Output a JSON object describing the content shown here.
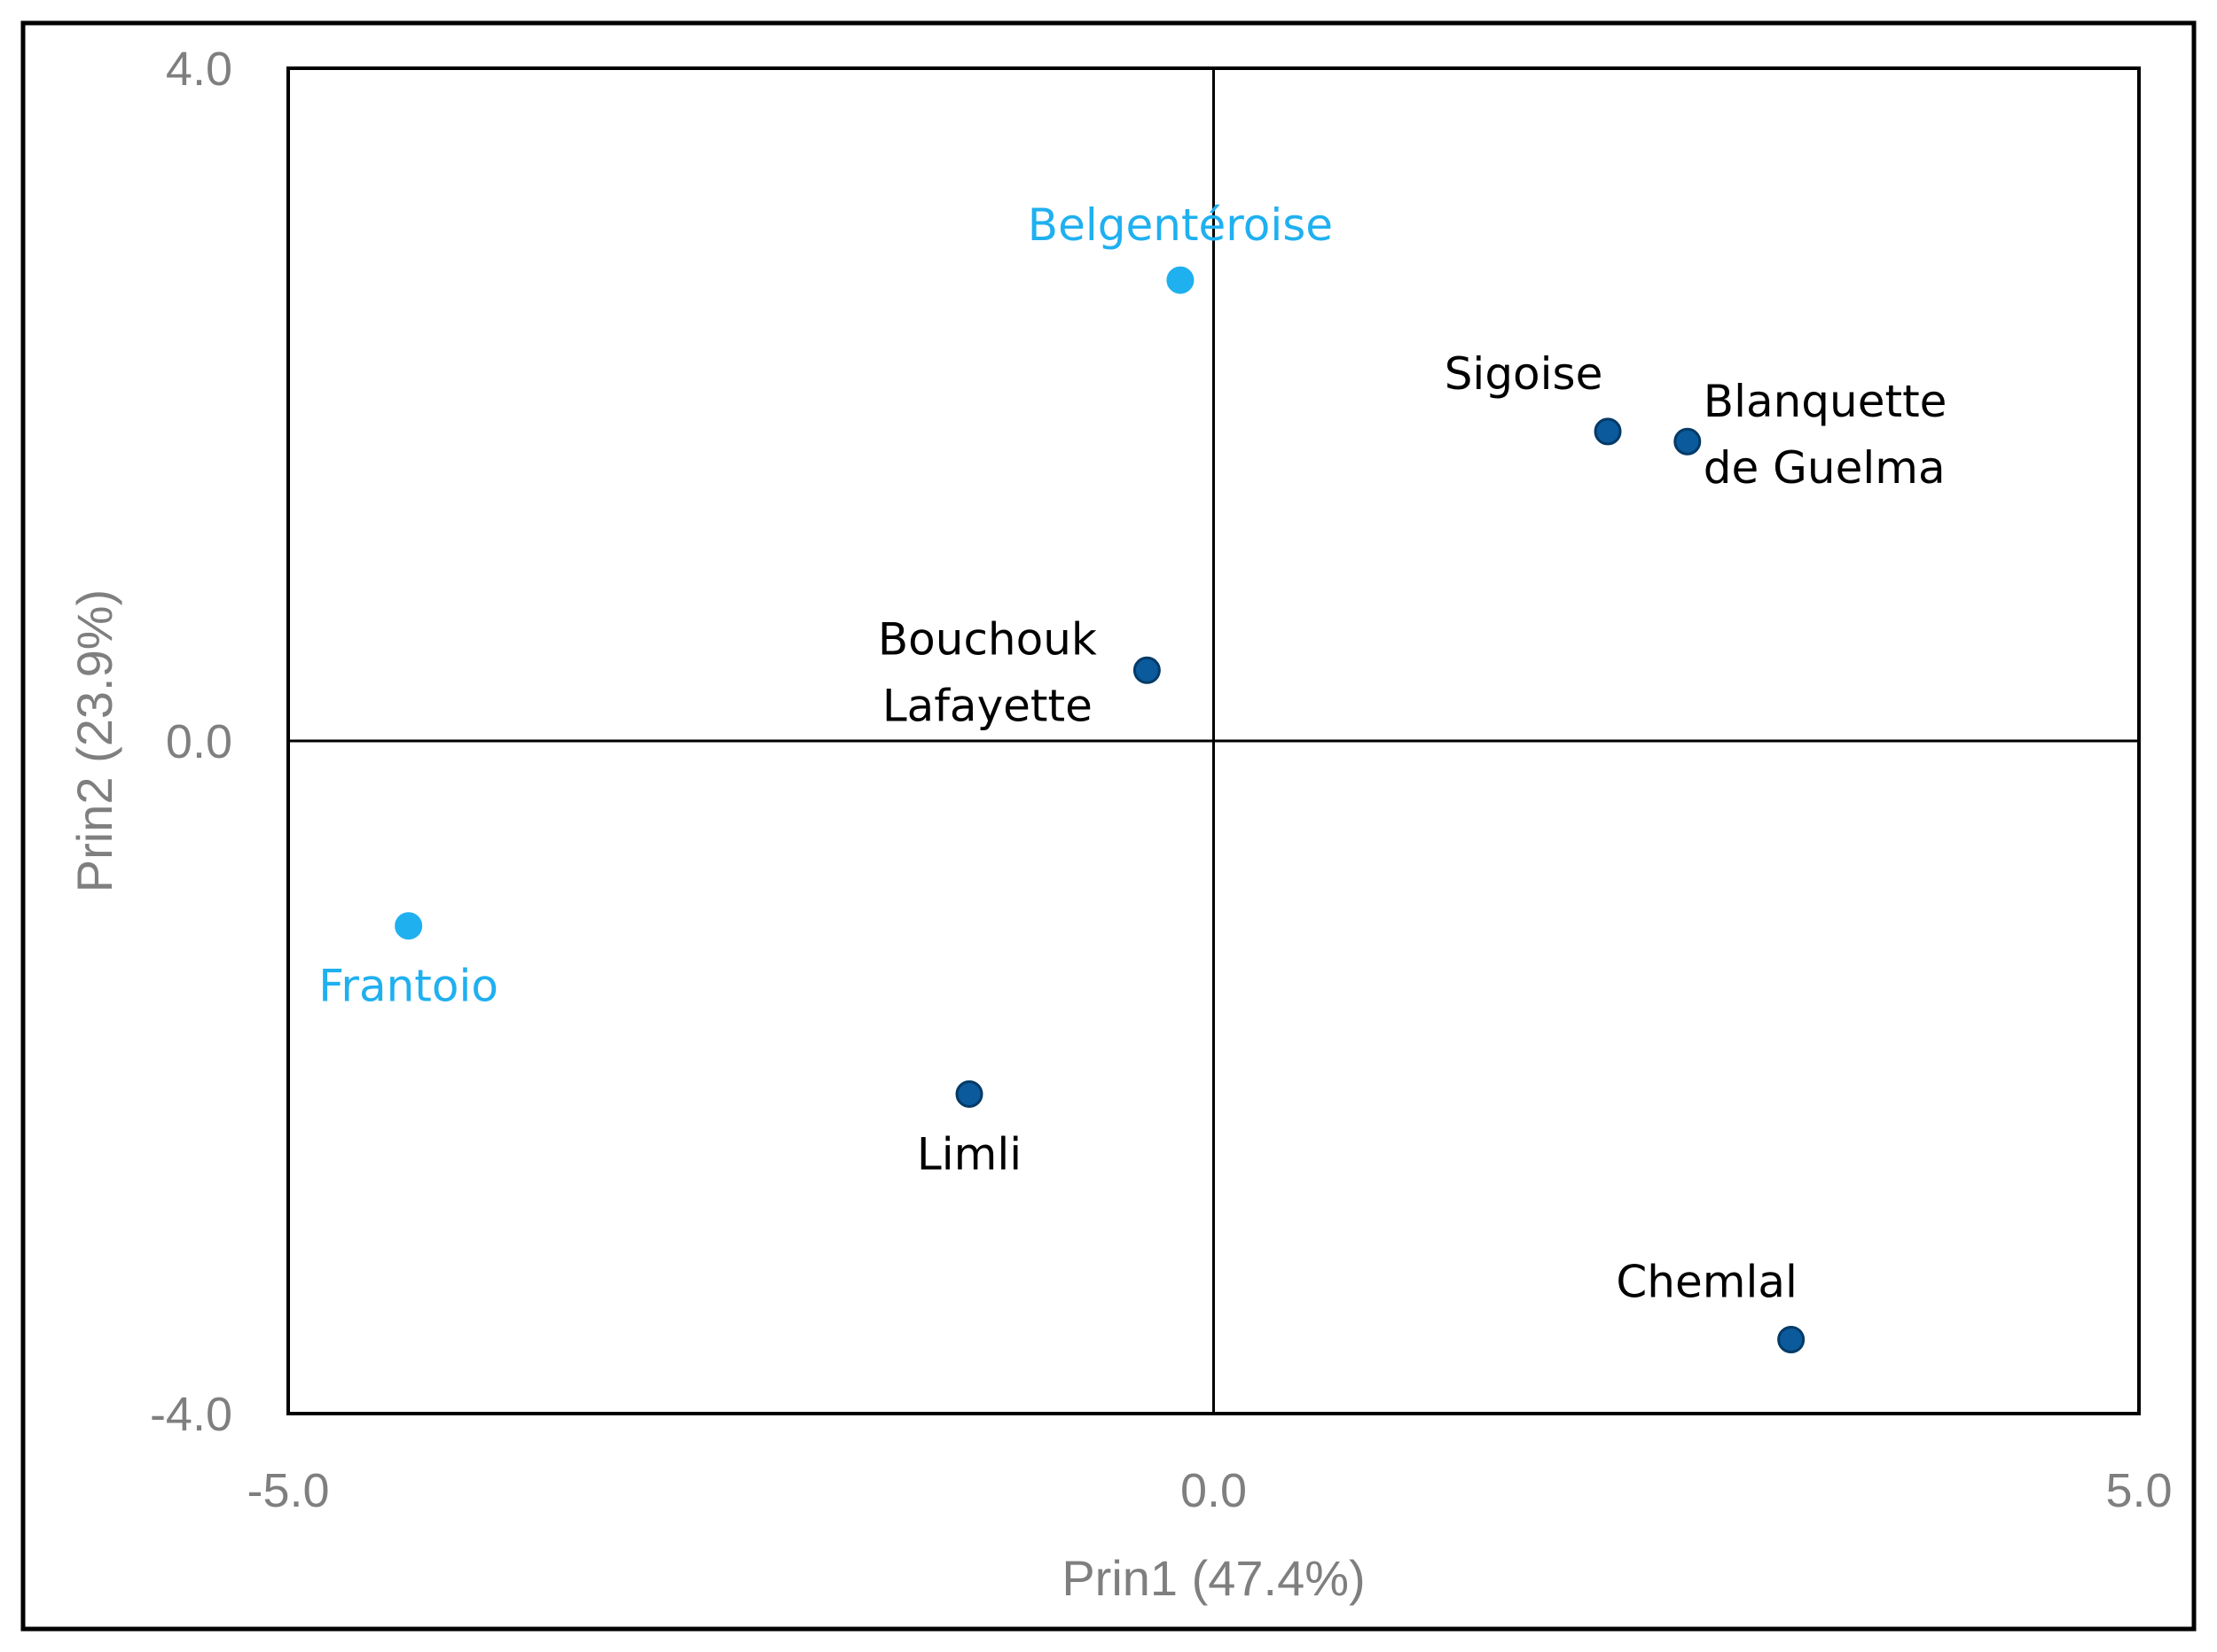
{
  "chart_data": {
    "type": "scatter",
    "xlabel": "Prin1 (47.4%)",
    "ylabel": "Prin2 (23.9%)",
    "xlim": [
      -5.0,
      5.0
    ],
    "ylim": [
      -4.0,
      4.0
    ],
    "x_ticks": [
      "-5.0",
      "0.0",
      "5.0"
    ],
    "y_ticks": [
      "4.0",
      "0.0",
      "-4.0"
    ],
    "grid": false,
    "zero_lines": true,
    "colors": {
      "highlight": "#1fb0f0",
      "default": "#0a5a9c",
      "label_default": "#000000"
    },
    "points": [
      {
        "label": [
          "Belgentéroise"
        ],
        "x": -0.18,
        "y": 2.74,
        "group": "highlight",
        "label_pos": "above"
      },
      {
        "label": [
          "Sigoise"
        ],
        "x": 2.13,
        "y": 1.84,
        "group": "default",
        "label_pos": "above-left"
      },
      {
        "label": [
          "Blanquette",
          "de Guelma"
        ],
        "x": 2.56,
        "y": 1.78,
        "group": "default",
        "label_pos": "right"
      },
      {
        "label": [
          "Bouchouk",
          "Lafayette"
        ],
        "x": -0.36,
        "y": 0.42,
        "group": "default",
        "label_pos": "left"
      },
      {
        "label": [
          "Frantoio"
        ],
        "x": -4.35,
        "y": -1.1,
        "group": "highlight",
        "label_pos": "below"
      },
      {
        "label": [
          "Limli"
        ],
        "x": -1.32,
        "y": -2.1,
        "group": "default",
        "label_pos": "below"
      },
      {
        "label": [
          "Chemlal"
        ],
        "x": 3.12,
        "y": -3.56,
        "group": "default",
        "label_pos": "above-left"
      }
    ]
  }
}
